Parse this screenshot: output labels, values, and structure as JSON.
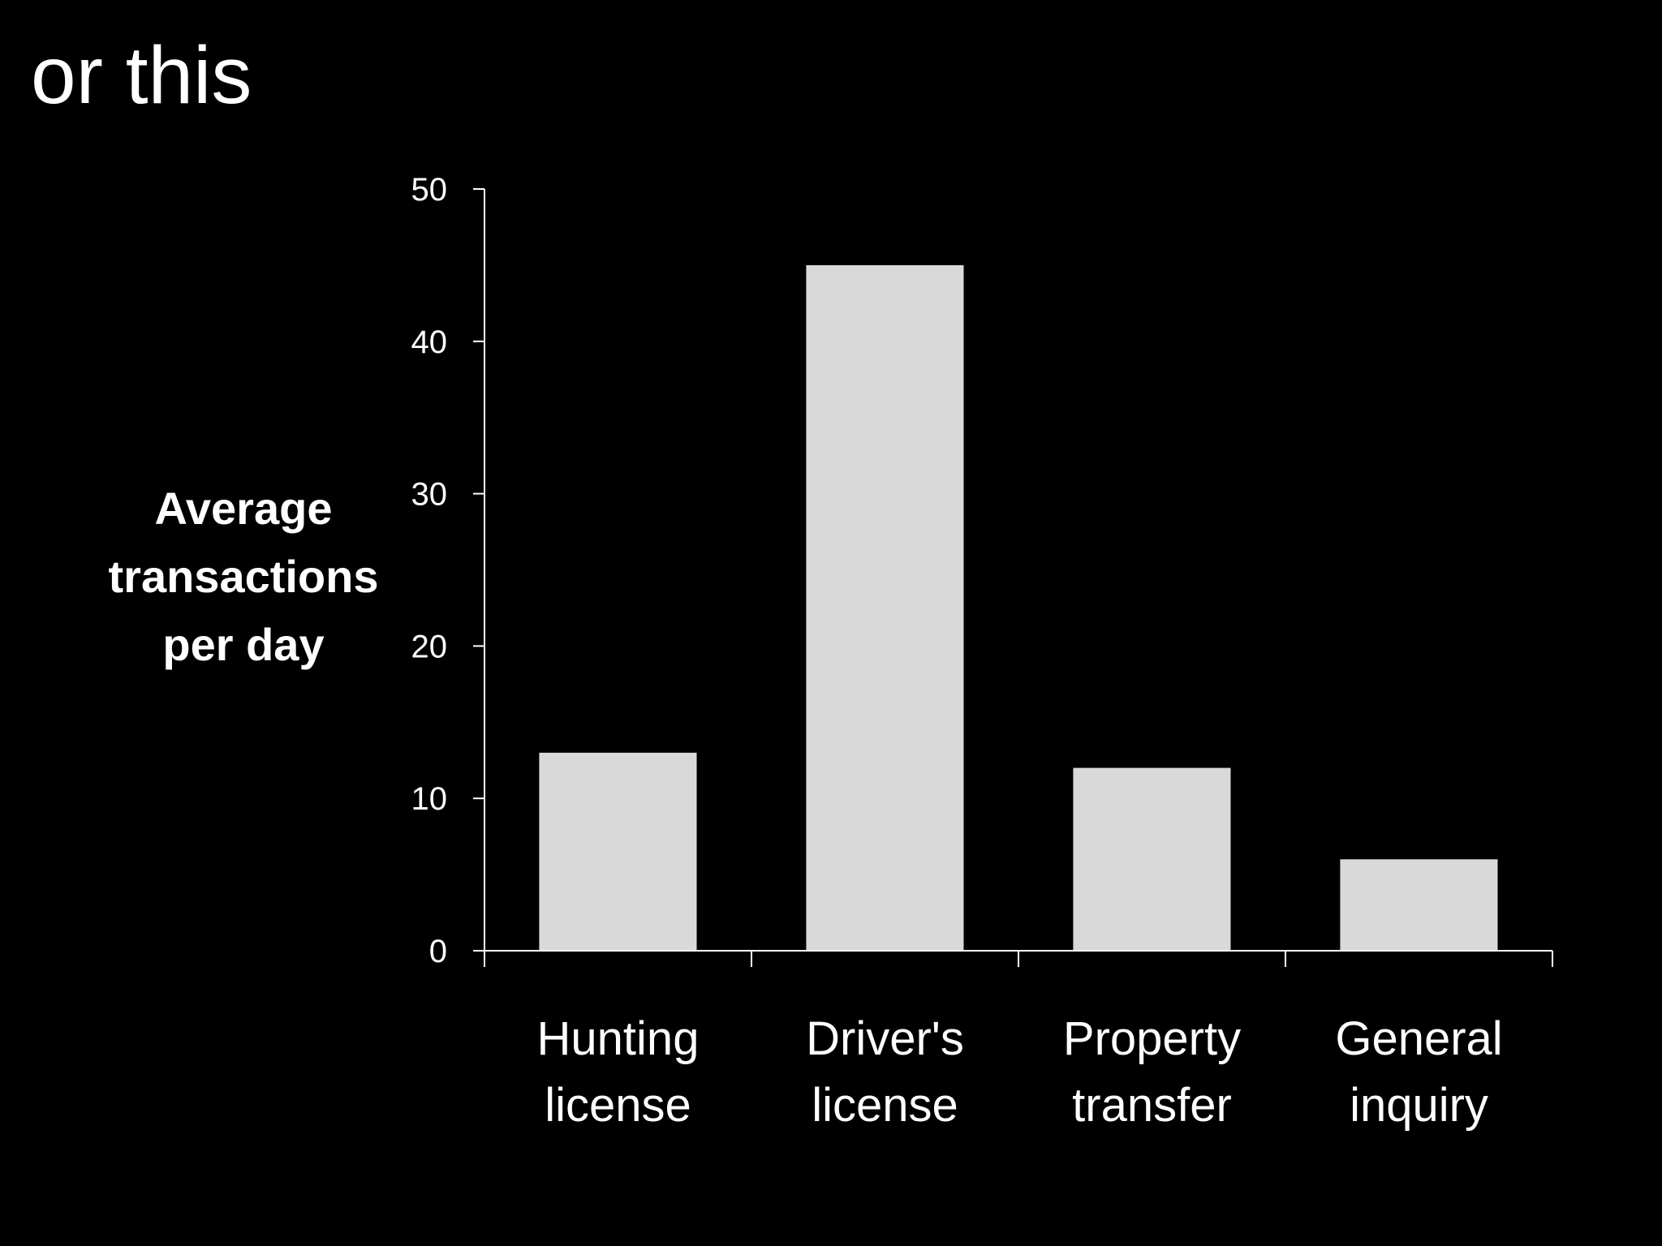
{
  "slide": {
    "title": "or this"
  },
  "colors": {
    "background": "#000000",
    "bar": "#d9d9d9",
    "axis": "#ffffff",
    "text": "#ffffff"
  },
  "chart_data": {
    "type": "bar",
    "title": "",
    "ylabel_lines": [
      "Average",
      "transactions",
      "per day"
    ],
    "xlabel": "",
    "categories": [
      [
        "Hunting",
        "license"
      ],
      [
        "Driver's",
        "license"
      ],
      [
        "Property",
        "transfer"
      ],
      [
        "General",
        "inquiry"
      ]
    ],
    "values": [
      13,
      45,
      12,
      6
    ],
    "ylim": [
      0,
      50
    ],
    "yticks": [
      0,
      10,
      20,
      30,
      40,
      50
    ],
    "grid": false,
    "legend": "none"
  }
}
